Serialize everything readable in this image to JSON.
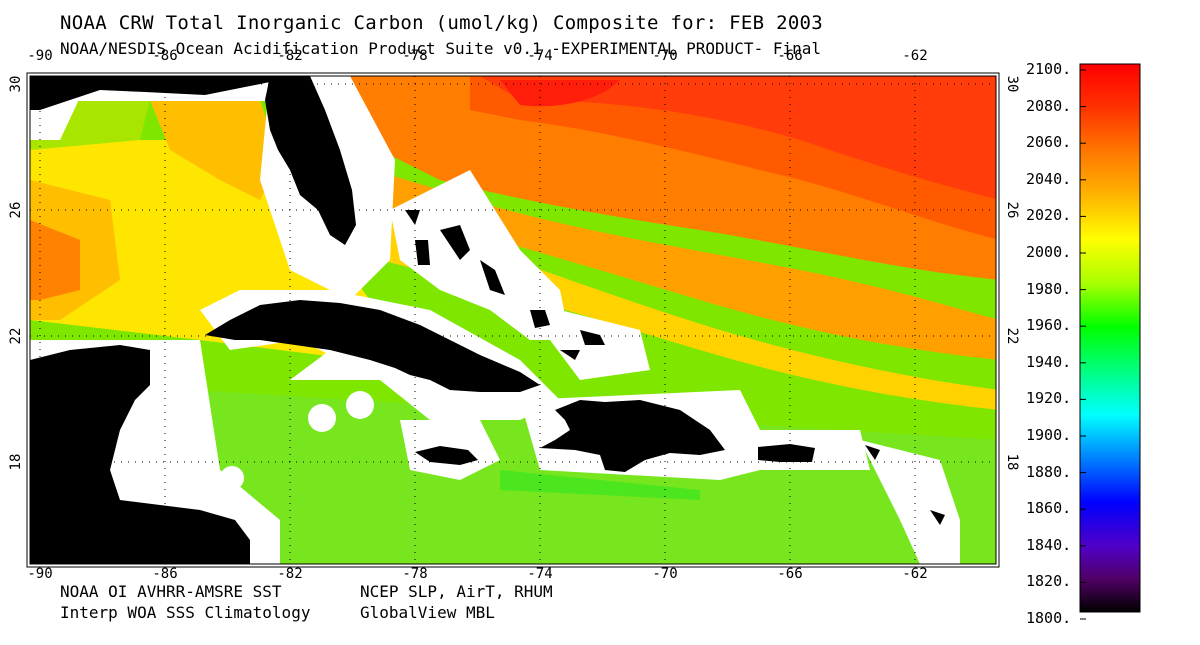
{
  "header": {
    "title": "NOAA CRW Total Inorganic Carbon (umol/kg) Composite for: FEB 2003",
    "subtitle": "NOAA/NESDIS Ocean Acidification Product Suite  v0.1 -EXPERIMENTAL PRODUCT-    Final"
  },
  "footer": {
    "sst_source": "NOAA OI AVHRR-AMSRE SST",
    "sss_source": "Interp WOA SSS Climatology",
    "met_source": "NCEP SLP, AirT, RHUM",
    "co2_source": "GlobalView MBL"
  },
  "map": {
    "lon_ticks": [
      "-90",
      "-86",
      "-82",
      "-78",
      "-74",
      "-70",
      "-66",
      "-62"
    ],
    "lat_ticks": [
      "30",
      "26",
      "22",
      "18"
    ],
    "colors": {
      "land": "#000000",
      "mask": "#ffffff",
      "frame": "#000000"
    }
  },
  "colorbar": {
    "labels": [
      "2100.",
      "2080.",
      "2060.",
      "2040.",
      "2020.",
      "2000.",
      "1980.",
      "1960.",
      "1940.",
      "1920.",
      "1900.",
      "1880.",
      "1860.",
      "1840.",
      "1820.",
      "1800."
    ],
    "range": [
      1800,
      2100
    ],
    "colors_top_to_bottom": [
      "#ff0000",
      "#ff3c00",
      "#ff7800",
      "#ffb400",
      "#ffff00",
      "#a0ff00",
      "#00ff00",
      "#00ff80",
      "#00ffff",
      "#0080ff",
      "#0000ff",
      "#4000c0",
      "#600080",
      "#000000"
    ]
  }
}
